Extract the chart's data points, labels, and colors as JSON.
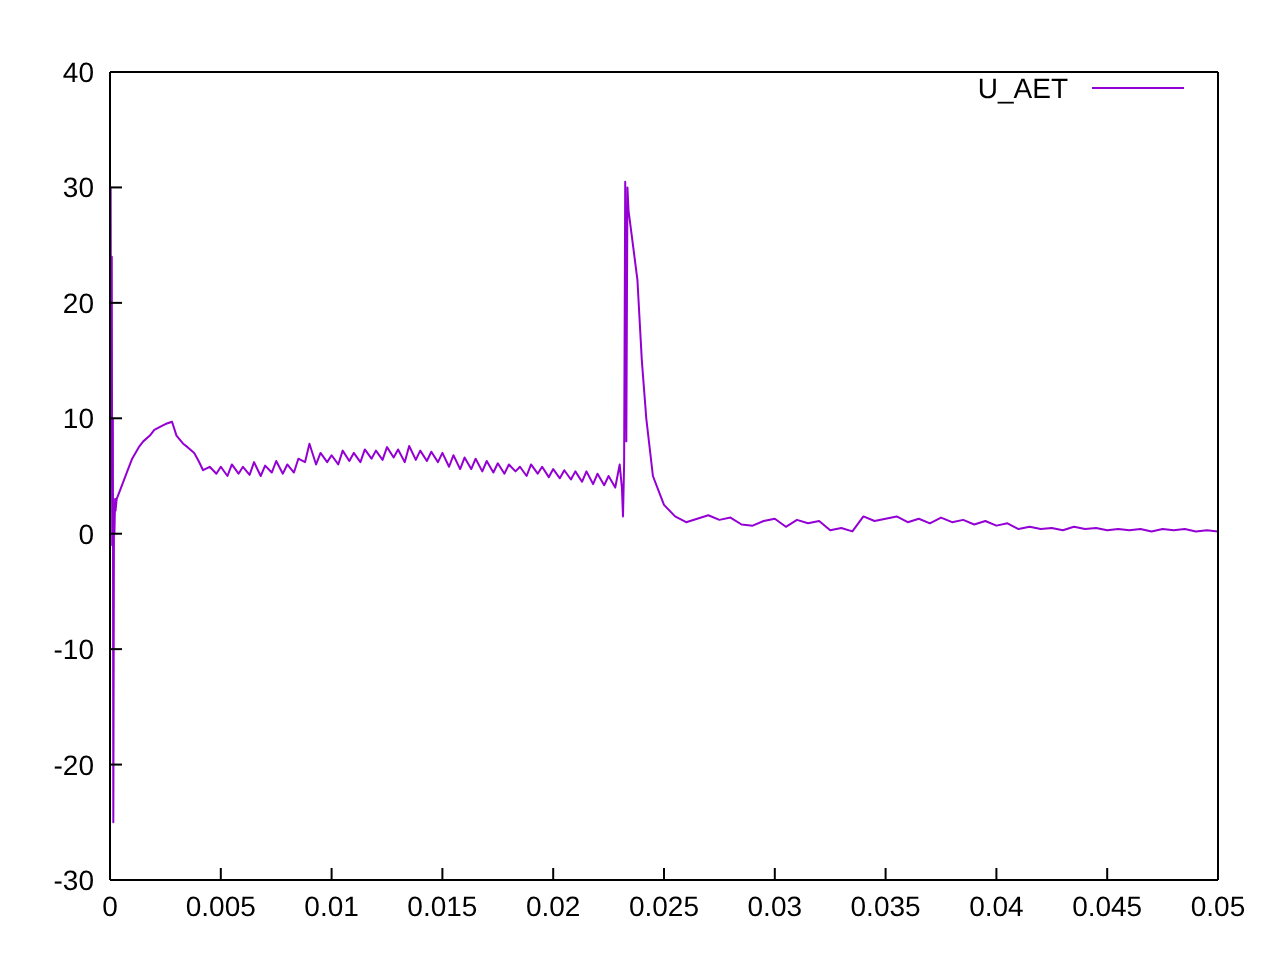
{
  "chart_data": {
    "type": "line",
    "xlim": [
      0,
      0.05
    ],
    "ylim": [
      -30,
      40
    ],
    "xticks": [
      0,
      0.005,
      0.01,
      0.015,
      0.02,
      0.025,
      0.03,
      0.035,
      0.04,
      0.045,
      0.05
    ],
    "yticks": [
      -30,
      -20,
      -10,
      0,
      10,
      20,
      30,
      40
    ],
    "legend": "top right",
    "marker": "none",
    "line_style": "solid",
    "series": [
      {
        "name": "U_AET",
        "color": "#9400d3",
        "x": [
          0,
          3e-05,
          5e-05,
          8e-05,
          0.0001,
          0.00013,
          0.00015,
          0.00018,
          0.0002,
          0.00023,
          0.00025,
          0.0003,
          0.0005,
          0.0008,
          0.001,
          0.0013,
          0.0015,
          0.0018,
          0.002,
          0.0023,
          0.0025,
          0.0028,
          0.003,
          0.0033,
          0.0035,
          0.0038,
          0.004,
          0.0042,
          0.0045,
          0.0048,
          0.005,
          0.0053,
          0.0055,
          0.0058,
          0.006,
          0.0063,
          0.0065,
          0.0068,
          0.007,
          0.0073,
          0.0075,
          0.0078,
          0.008,
          0.0083,
          0.0085,
          0.0088,
          0.009,
          0.0093,
          0.0095,
          0.0098,
          0.01,
          0.0103,
          0.0105,
          0.0108,
          0.011,
          0.0113,
          0.0115,
          0.0118,
          0.012,
          0.0123,
          0.0125,
          0.0128,
          0.013,
          0.0133,
          0.0135,
          0.0138,
          0.014,
          0.0143,
          0.0145,
          0.0148,
          0.015,
          0.0153,
          0.0155,
          0.0158,
          0.016,
          0.0163,
          0.0165,
          0.0168,
          0.017,
          0.0173,
          0.0175,
          0.0178,
          0.018,
          0.0183,
          0.0185,
          0.0188,
          0.019,
          0.0193,
          0.0195,
          0.0198,
          0.02,
          0.0203,
          0.0205,
          0.0208,
          0.021,
          0.0213,
          0.0215,
          0.0218,
          0.022,
          0.0223,
          0.0225,
          0.0228,
          0.023,
          0.0231,
          0.02315,
          0.0232,
          0.02325,
          0.0233,
          0.02335,
          0.0234,
          0.0236,
          0.0238,
          0.024,
          0.0242,
          0.0245,
          0.0248,
          0.025,
          0.0255,
          0.026,
          0.0265,
          0.027,
          0.0275,
          0.028,
          0.0285,
          0.029,
          0.0295,
          0.03,
          0.0305,
          0.031,
          0.0315,
          0.032,
          0.0325,
          0.033,
          0.0335,
          0.034,
          0.0345,
          0.035,
          0.0355,
          0.036,
          0.0365,
          0.037,
          0.0375,
          0.038,
          0.0385,
          0.039,
          0.0395,
          0.04,
          0.0405,
          0.041,
          0.0415,
          0.042,
          0.0425,
          0.043,
          0.0435,
          0.044,
          0.0445,
          0.045,
          0.0455,
          0.046,
          0.0465,
          0.047,
          0.0475,
          0.048,
          0.0485,
          0.049,
          0.0495,
          0.05
        ],
        "values": [
          0,
          30,
          5,
          24,
          -1,
          10,
          -25,
          2,
          0,
          3,
          2,
          3,
          4,
          5.5,
          6.5,
          7.5,
          8,
          8.5,
          9,
          9.3,
          9.5,
          9.7,
          8.5,
          7.8,
          7.5,
          7,
          6.3,
          5.5,
          5.8,
          5.2,
          5.8,
          5,
          6,
          5.2,
          5.8,
          5.1,
          6.2,
          5,
          5.9,
          5.3,
          6.3,
          5.2,
          6,
          5.3,
          6.5,
          6.2,
          7.8,
          6,
          7,
          6.2,
          6.8,
          6,
          7.2,
          6.3,
          7,
          6.2,
          7.3,
          6.5,
          7.2,
          6.4,
          7.5,
          6.6,
          7.3,
          6.2,
          7.6,
          6.4,
          7.2,
          6.3,
          7.1,
          6.2,
          7,
          5.8,
          6.8,
          5.6,
          6.6,
          5.6,
          6.5,
          5.4,
          6.3,
          5.3,
          6.1,
          5.2,
          6,
          5.4,
          5.8,
          5,
          6,
          5.2,
          5.8,
          4.9,
          5.6,
          4.8,
          5.5,
          4.7,
          5.4,
          4.5,
          5.4,
          4.3,
          5.2,
          4.2,
          5,
          4,
          6,
          4,
          1.5,
          6,
          30.5,
          8,
          30,
          28,
          25,
          22,
          15,
          10,
          5,
          3.5,
          2.5,
          1.5,
          1,
          1.3,
          1.6,
          1.2,
          1.4,
          0.8,
          0.7,
          1.1,
          1.3,
          0.6,
          1.2,
          0.9,
          1.1,
          0.3,
          0.5,
          0.2,
          1.5,
          1.1,
          1.3,
          1.5,
          1,
          1.3,
          0.9,
          1.4,
          1,
          1.2,
          0.8,
          1.1,
          0.7,
          0.9,
          0.4,
          0.6,
          0.4,
          0.5,
          0.3,
          0.6,
          0.4,
          0.5,
          0.3,
          0.4,
          0.3,
          0.4,
          0.2,
          0.4,
          0.3,
          0.4,
          0.2,
          0.3,
          0.2
        ]
      }
    ]
  }
}
